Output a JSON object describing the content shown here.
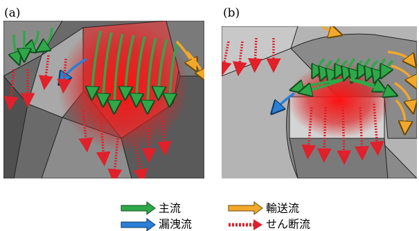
{
  "panels": [
    {
      "label": "(a)"
    },
    {
      "label": "(b)"
    }
  ],
  "legend": [
    {
      "label": "主流"
    },
    {
      "label": "輸送流"
    },
    {
      "label": "漏洩流"
    },
    {
      "label": "せん断流"
    }
  ]
}
